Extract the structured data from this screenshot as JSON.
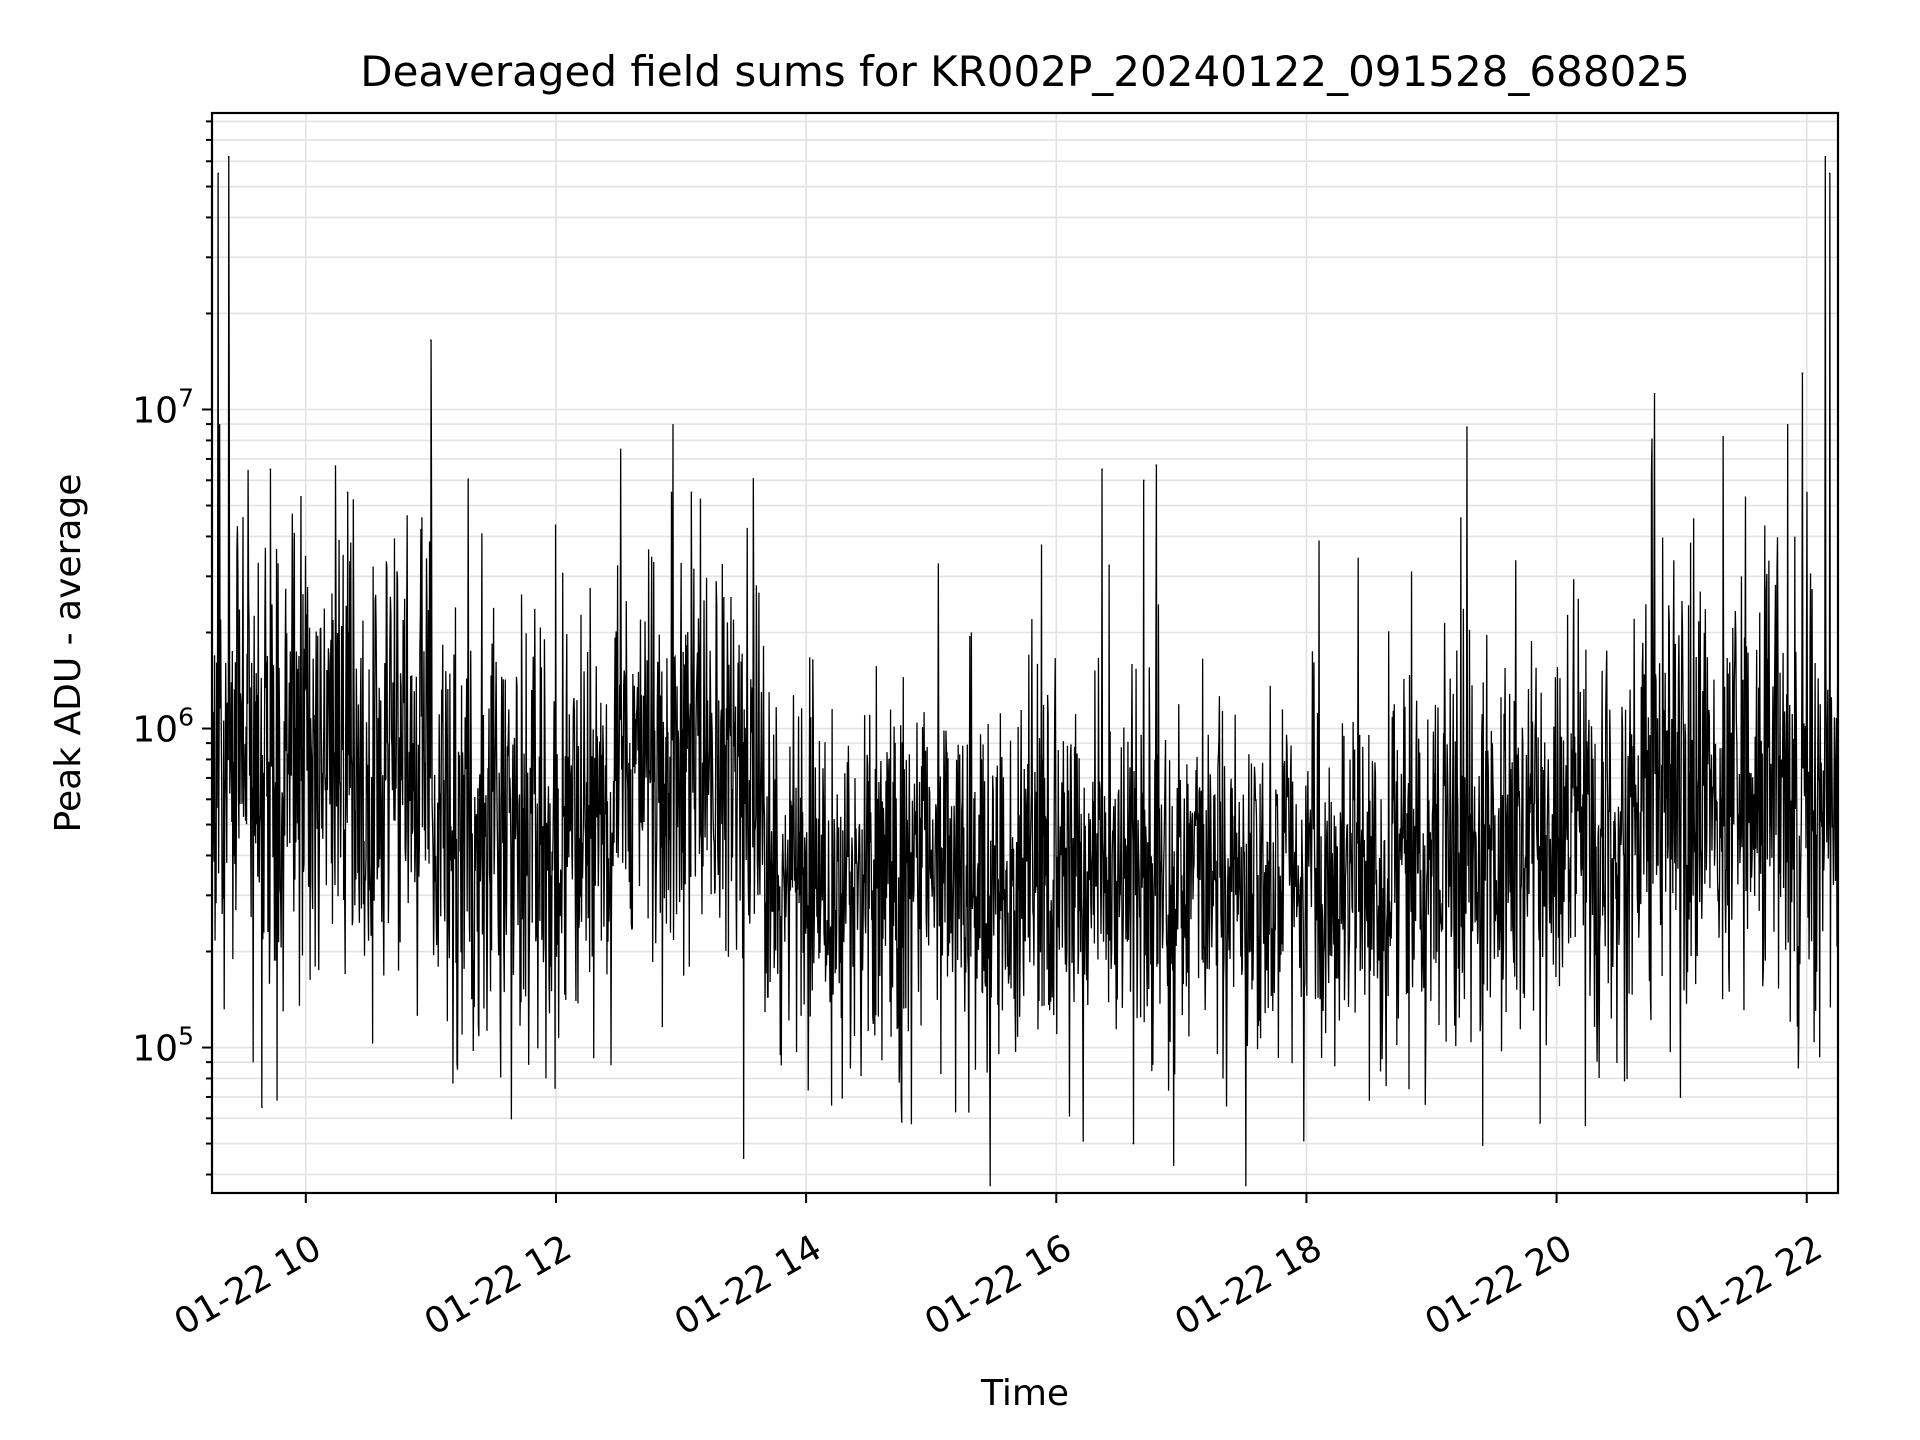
{
  "chart_data": {
    "type": "line",
    "title": "Deaveraged field sums for KR002P_20240122_091528_688025",
    "xlabel": "Time",
    "ylabel": "Peak ADU - average",
    "x_ticks": [
      "01-22 10",
      "01-22 12",
      "01-22 14",
      "01-22 16",
      "01-22 18",
      "01-22 20",
      "01-22 22"
    ],
    "y_ticks": [
      {
        "base": "10",
        "exp": "5"
      },
      {
        "base": "10",
        "exp": "6"
      },
      {
        "base": "10",
        "exp": "7"
      }
    ],
    "x_range": [
      "2024-01-22 09:15",
      "2024-01-22 22:15"
    ],
    "ylim": [
      35000,
      85000000
    ],
    "y_scale": "log",
    "grid": true,
    "line_color": "#000000",
    "segments": [
      {
        "start": "2024-01-22 09:15",
        "end": "2024-01-22 11:00",
        "median": 800000,
        "spread": 0.35
      },
      {
        "start": "2024-01-22 11:00",
        "end": "2024-01-22 12:30",
        "median": 450000,
        "spread": 0.35
      },
      {
        "start": "2024-01-22 12:30",
        "end": "2024-01-22 13:40",
        "median": 800000,
        "spread": 0.3
      },
      {
        "start": "2024-01-22 13:40",
        "end": "2024-01-22 16:00",
        "median": 320000,
        "spread": 0.28
      },
      {
        "start": "2024-01-22 16:00",
        "end": "2024-01-22 19:00",
        "median": 330000,
        "spread": 0.27
      },
      {
        "start": "2024-01-22 19:00",
        "end": "2024-01-22 20:40",
        "median": 420000,
        "spread": 0.3
      },
      {
        "start": "2024-01-22 20:40",
        "end": "2024-01-22 22:15",
        "median": 650000,
        "spread": 0.33
      }
    ],
    "peaks": [
      {
        "t": "2024-01-22 09:18",
        "y": 55000000
      },
      {
        "t": "2024-01-22 09:23",
        "y": 62000000
      },
      {
        "t": "2024-01-22 09:32",
        "y": 1200000
      },
      {
        "t": "2024-01-22 09:43",
        "y": 6500000
      },
      {
        "t": "2024-01-22 10:20",
        "y": 5500000
      },
      {
        "t": "2024-01-22 11:00",
        "y": 16500000
      },
      {
        "t": "2024-01-22 13:05",
        "y": 5500000
      },
      {
        "t": "2024-01-22 16:22",
        "y": 6500000
      },
      {
        "t": "2024-01-22 16:42",
        "y": 6000000
      },
      {
        "t": "2024-01-22 16:48",
        "y": 6700000
      },
      {
        "t": "2024-01-22 19:17",
        "y": 8800000
      },
      {
        "t": "2024-01-22 20:47",
        "y": 11200000
      },
      {
        "t": "2024-01-22 21:58",
        "y": 13000000
      },
      {
        "t": "2024-01-22 22:09",
        "y": 62000000
      },
      {
        "t": "2024-01-22 22:11",
        "y": 55000000
      },
      {
        "t": "2024-01-22 13:30",
        "y": 45000
      },
      {
        "t": "2024-01-22 16:37",
        "y": 50000
      },
      {
        "t": "2024-01-22 09:39",
        "y": 65000
      },
      {
        "t": "2024-01-22 19:52",
        "y": 58000
      }
    ]
  }
}
